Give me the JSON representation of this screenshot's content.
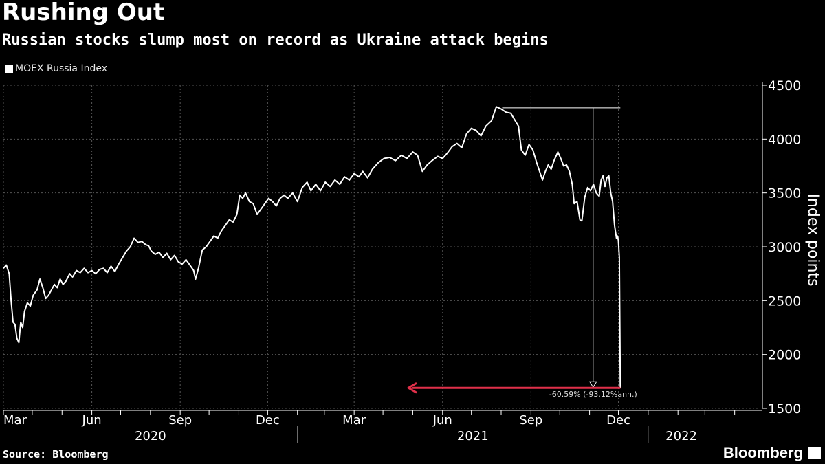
{
  "header": {
    "title": "Rushing Out",
    "subtitle": "Russian stocks slump most on record as Ukraine attack begins"
  },
  "footer": {
    "source": "Source: Bloomberg",
    "brand": "Bloomberg"
  },
  "colors": {
    "background": "#000000",
    "line": "#ffffff",
    "grid": "#555555",
    "annotation_arrow": "#e0304a"
  },
  "chart_data": {
    "type": "line",
    "title": "Rushing Out",
    "subtitle": "Russian stocks slump most on record as Ukraine attack begins",
    "legend": [
      "MOEX Russia Index"
    ],
    "legend_position": "top-left",
    "ylabel": "Index points",
    "xlabel": "",
    "ylim": [
      1500,
      4500
    ],
    "y_ticks": [
      "4500",
      "4000",
      "3500",
      "3000",
      "2500",
      "2000",
      "1500"
    ],
    "y_tick_values": [
      4500,
      4000,
      3500,
      3000,
      2500,
      2000,
      1500
    ],
    "grid": true,
    "x_range_days": [
      0,
      787
    ],
    "x_month_ticks": [
      {
        "label": "Mar",
        "day": 0
      },
      {
        "label": "Jun",
        "day": 92
      },
      {
        "label": "Sep",
        "day": 184
      },
      {
        "label": "Dec",
        "day": 275
      },
      {
        "label": "Mar",
        "day": 365
      },
      {
        "label": "Jun",
        "day": 457
      },
      {
        "label": "Sep",
        "day": 549
      },
      {
        "label": "Dec",
        "day": 640
      },
      {
        "label": "",
        "day": 30
      },
      {
        "label": "",
        "day": 61
      },
      {
        "label": "",
        "day": 122
      },
      {
        "label": "",
        "day": 153
      },
      {
        "label": "",
        "day": 214
      },
      {
        "label": "",
        "day": 245
      },
      {
        "label": "",
        "day": 306
      },
      {
        "label": "",
        "day": 334
      },
      {
        "label": "",
        "day": 395
      },
      {
        "label": "",
        "day": 426
      },
      {
        "label": "",
        "day": 487
      },
      {
        "label": "",
        "day": 518
      },
      {
        "label": "",
        "day": 579
      },
      {
        "label": "",
        "day": 610
      },
      {
        "label": "",
        "day": 671
      },
      {
        "label": "",
        "day": 702
      },
      {
        "label": "",
        "day": 730
      },
      {
        "label": "",
        "day": 761
      }
    ],
    "x_year_labels": [
      {
        "label": "2020",
        "start_day": 0,
        "end_day": 306
      },
      {
        "label": "2021",
        "start_day": 306,
        "end_day": 671
      },
      {
        "label": "2022",
        "start_day": 671,
        "end_day": 740
      }
    ],
    "x_year_dividers": [
      306,
      671
    ],
    "series": [
      {
        "name": "MOEX Russia Index",
        "points": [
          [
            0,
            2800
          ],
          [
            3,
            2830
          ],
          [
            6,
            2750
          ],
          [
            8,
            2500
          ],
          [
            10,
            2300
          ],
          [
            12,
            2280
          ],
          [
            14,
            2150
          ],
          [
            16,
            2110
          ],
          [
            18,
            2300
          ],
          [
            20,
            2250
          ],
          [
            22,
            2400
          ],
          [
            25,
            2480
          ],
          [
            28,
            2450
          ],
          [
            31,
            2550
          ],
          [
            35,
            2600
          ],
          [
            38,
            2700
          ],
          [
            41,
            2620
          ],
          [
            44,
            2520
          ],
          [
            47,
            2550
          ],
          [
            50,
            2600
          ],
          [
            53,
            2650
          ],
          [
            56,
            2620
          ],
          [
            59,
            2700
          ],
          [
            62,
            2650
          ],
          [
            65,
            2680
          ],
          [
            69,
            2750
          ],
          [
            72,
            2720
          ],
          [
            76,
            2780
          ],
          [
            80,
            2760
          ],
          [
            84,
            2800
          ],
          [
            88,
            2760
          ],
          [
            92,
            2780
          ],
          [
            96,
            2750
          ],
          [
            100,
            2790
          ],
          [
            104,
            2800
          ],
          [
            108,
            2760
          ],
          [
            112,
            2820
          ],
          [
            116,
            2770
          ],
          [
            120,
            2840
          ],
          [
            124,
            2900
          ],
          [
            128,
            2960
          ],
          [
            132,
            3000
          ],
          [
            136,
            3080
          ],
          [
            140,
            3040
          ],
          [
            144,
            3050
          ],
          [
            148,
            3020
          ],
          [
            151,
            3010
          ],
          [
            154,
            2960
          ],
          [
            158,
            2930
          ],
          [
            162,
            2950
          ],
          [
            166,
            2900
          ],
          [
            170,
            2940
          ],
          [
            174,
            2880
          ],
          [
            178,
            2920
          ],
          [
            182,
            2860
          ],
          [
            186,
            2840
          ],
          [
            190,
            2880
          ],
          [
            194,
            2830
          ],
          [
            198,
            2780
          ],
          [
            200,
            2700
          ],
          [
            203,
            2800
          ],
          [
            207,
            2970
          ],
          [
            211,
            3000
          ],
          [
            215,
            3050
          ],
          [
            219,
            3100
          ],
          [
            223,
            3080
          ],
          [
            227,
            3150
          ],
          [
            231,
            3200
          ],
          [
            235,
            3250
          ],
          [
            239,
            3230
          ],
          [
            243,
            3300
          ],
          [
            246,
            3480
          ],
          [
            249,
            3450
          ],
          [
            252,
            3500
          ],
          [
            256,
            3420
          ],
          [
            260,
            3400
          ],
          [
            264,
            3300
          ],
          [
            268,
            3350
          ],
          [
            272,
            3400
          ],
          [
            276,
            3450
          ],
          [
            280,
            3420
          ],
          [
            284,
            3380
          ],
          [
            288,
            3450
          ],
          [
            292,
            3480
          ],
          [
            296,
            3450
          ],
          [
            301,
            3500
          ],
          [
            306,
            3420
          ],
          [
            311,
            3550
          ],
          [
            316,
            3600
          ],
          [
            320,
            3520
          ],
          [
            325,
            3580
          ],
          [
            330,
            3520
          ],
          [
            335,
            3600
          ],
          [
            340,
            3560
          ],
          [
            345,
            3620
          ],
          [
            350,
            3580
          ],
          [
            355,
            3650
          ],
          [
            360,
            3620
          ],
          [
            365,
            3680
          ],
          [
            370,
            3650
          ],
          [
            374,
            3700
          ],
          [
            379,
            3640
          ],
          [
            384,
            3720
          ],
          [
            390,
            3780
          ],
          [
            396,
            3820
          ],
          [
            402,
            3830
          ],
          [
            408,
            3800
          ],
          [
            414,
            3850
          ],
          [
            420,
            3820
          ],
          [
            426,
            3880
          ],
          [
            431,
            3850
          ],
          [
            436,
            3700
          ],
          [
            441,
            3760
          ],
          [
            446,
            3800
          ],
          [
            452,
            3840
          ],
          [
            457,
            3820
          ],
          [
            462,
            3870
          ],
          [
            467,
            3930
          ],
          [
            472,
            3960
          ],
          [
            477,
            3920
          ],
          [
            482,
            4050
          ],
          [
            487,
            4100
          ],
          [
            492,
            4080
          ],
          [
            497,
            4030
          ],
          [
            502,
            4120
          ],
          [
            508,
            4170
          ],
          [
            513,
            4300
          ],
          [
            518,
            4280
          ],
          [
            523,
            4250
          ],
          [
            528,
            4240
          ],
          [
            532,
            4180
          ],
          [
            536,
            4120
          ],
          [
            539,
            3900
          ],
          [
            543,
            3850
          ],
          [
            547,
            3950
          ],
          [
            551,
            3900
          ],
          [
            555,
            3780
          ],
          [
            558,
            3700
          ],
          [
            561,
            3620
          ],
          [
            564,
            3700
          ],
          [
            567,
            3760
          ],
          [
            570,
            3720
          ],
          [
            573,
            3800
          ],
          [
            577,
            3880
          ],
          [
            580,
            3820
          ],
          [
            583,
            3750
          ],
          [
            586,
            3760
          ],
          [
            589,
            3700
          ],
          [
            592,
            3580
          ],
          [
            594,
            3400
          ],
          [
            597,
            3420
          ],
          [
            600,
            3250
          ],
          [
            602,
            3240
          ],
          [
            605,
            3460
          ],
          [
            608,
            3550
          ],
          [
            611,
            3520
          ],
          [
            614,
            3580
          ],
          [
            617,
            3500
          ],
          [
            620,
            3470
          ],
          [
            622,
            3620
          ],
          [
            624,
            3660
          ],
          [
            626,
            3560
          ],
          [
            628,
            3640
          ],
          [
            630,
            3660
          ],
          [
            632,
            3500
          ],
          [
            634,
            3420
          ],
          [
            636,
            3200
          ],
          [
            638,
            3080
          ],
          [
            639,
            3100
          ],
          [
            640,
            3060
          ],
          [
            641,
            2900
          ],
          [
            642,
            1690
          ]
        ]
      }
    ],
    "annotation": {
      "label": "-60.59% (-93.12%ann.)",
      "peak_day": 519,
      "peak_value": 4290,
      "trough_day": 642,
      "trough_value": 1690,
      "arrow_end_day": 420
    }
  }
}
